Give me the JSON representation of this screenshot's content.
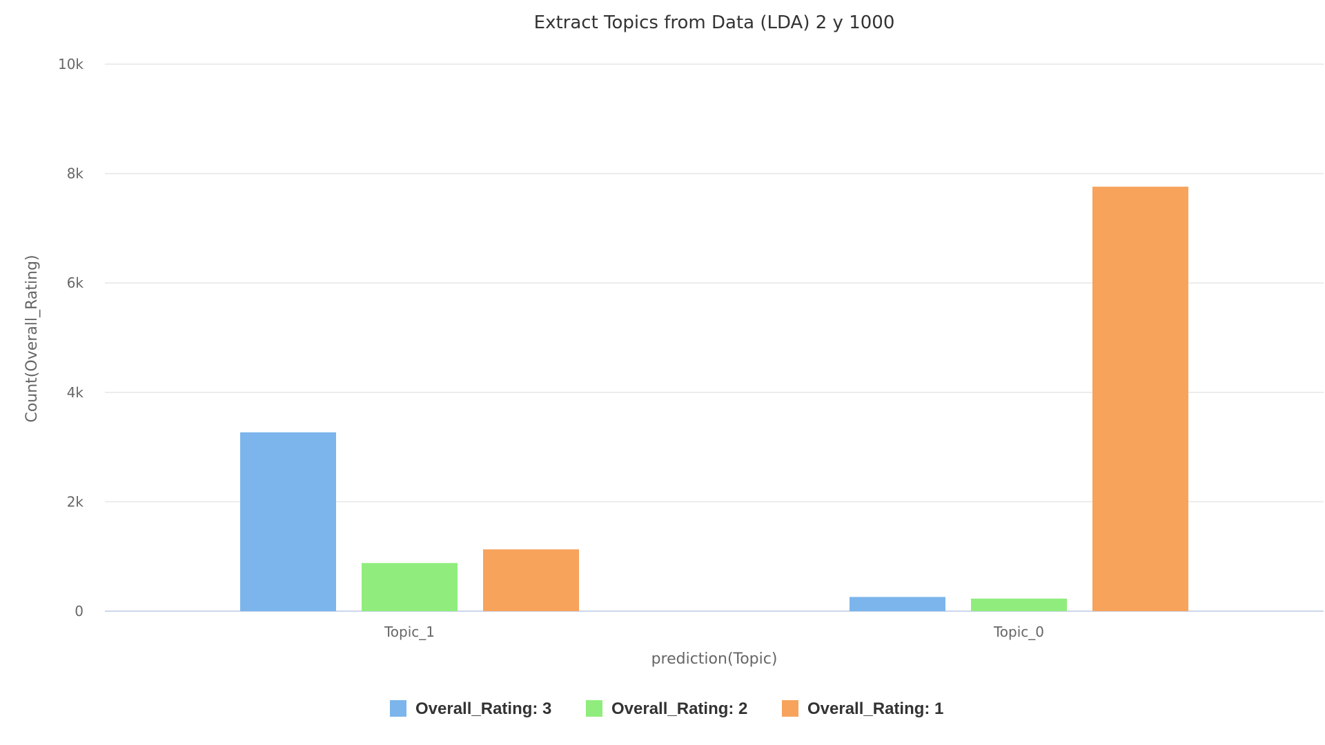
{
  "chart_data": {
    "type": "bar",
    "title": "Extract Topics from Data (LDA) 2 y 1000",
    "xlabel": "prediction(Topic)",
    "ylabel": "Count(Overall_Rating)",
    "categories": [
      "Topic_1",
      "Topic_0"
    ],
    "series": [
      {
        "name": "Overall_Rating: 3",
        "color": "#7cb5ec",
        "values": [
          3270,
          260
        ]
      },
      {
        "name": "Overall_Rating: 2",
        "color": "#90ed7d",
        "values": [
          880,
          230
        ]
      },
      {
        "name": "Overall_Rating: 1",
        "color": "#f7a35c",
        "values": [
          1130,
          7760
        ]
      }
    ],
    "ylim": [
      0,
      10000
    ],
    "yticks": [
      0,
      2000,
      4000,
      6000,
      8000,
      10000
    ],
    "ytick_labels": [
      "0",
      "2k",
      "4k",
      "6k",
      "8k",
      "10k"
    ],
    "grid": true,
    "legend_position": "bottom-center"
  }
}
